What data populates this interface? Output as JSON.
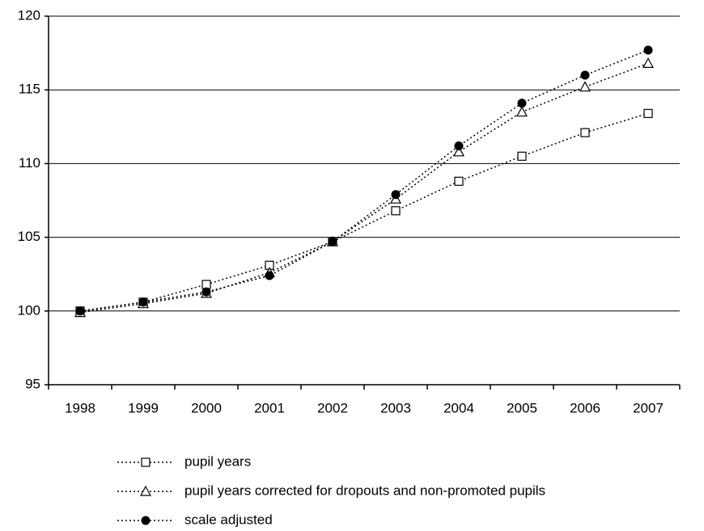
{
  "chart_data": {
    "type": "line",
    "categories": [
      "1998",
      "1999",
      "2000",
      "2001",
      "2002",
      "2003",
      "2004",
      "2005",
      "2006",
      "2007"
    ],
    "series": [
      {
        "name": "pupil years",
        "color": "#000000",
        "marker": "square",
        "values": [
          100,
          100.6,
          101.8,
          103.1,
          104.7,
          106.8,
          108.8,
          110.5,
          112.1,
          113.4
        ]
      },
      {
        "name": "pupil years corrected for dropouts and non-promoted pupils",
        "color": "#000000",
        "marker": "triangle",
        "values": [
          99.9,
          100.5,
          101.2,
          102.6,
          104.7,
          107.6,
          110.8,
          113.5,
          115.2,
          116.8
        ]
      },
      {
        "name": "scale adjusted",
        "color": "#000000",
        "marker": "circle",
        "values": [
          100,
          100.6,
          101.3,
          102.4,
          104.7,
          107.9,
          111.2,
          114.1,
          116.0,
          117.7
        ]
      }
    ],
    "ylim": [
      95,
      120
    ],
    "yticks": [
      95,
      100,
      105,
      110,
      115,
      120
    ],
    "grid": true
  }
}
